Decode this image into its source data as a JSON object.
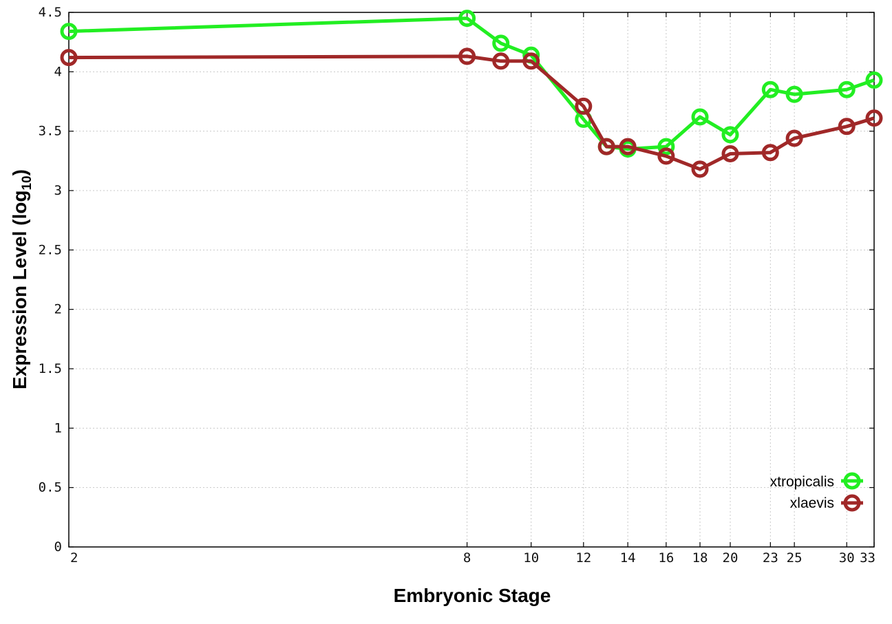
{
  "chart_data": {
    "type": "line",
    "xlabel": "Embryonic Stage",
    "ylabel_main": "Expression Level (log",
    "ylabel_sub": "10",
    "ylabel_close": ")",
    "x_ticks": [
      "2",
      "8",
      "10",
      "12",
      "14",
      "16",
      "18",
      "20",
      "23",
      "25",
      "30",
      "33"
    ],
    "y_ticks": [
      "0",
      "0.5",
      "1",
      "1.5",
      "2",
      "2.5",
      "3",
      "3.5",
      "4",
      "4.5"
    ],
    "xlim": [
      2,
      33
    ],
    "ylim": [
      0,
      4.5
    ],
    "x_scale": "log",
    "grid": true,
    "legend_position": "bottom-right",
    "series": [
      {
        "name": "xtropicalis",
        "color": "#22ee22",
        "points": [
          [
            2,
            4.34
          ],
          [
            8,
            4.45
          ],
          [
            9,
            4.24
          ],
          [
            10,
            4.14
          ],
          [
            12,
            3.6
          ],
          [
            13,
            3.37
          ],
          [
            14,
            3.35
          ],
          [
            16,
            3.37
          ],
          [
            18,
            3.62
          ],
          [
            20,
            3.47
          ],
          [
            23,
            3.85
          ],
          [
            25,
            3.81
          ],
          [
            30,
            3.85
          ],
          [
            33,
            3.93
          ]
        ]
      },
      {
        "name": "xlaevis",
        "color": "#a02828",
        "points": [
          [
            2,
            4.12
          ],
          [
            8,
            4.13
          ],
          [
            9,
            4.09
          ],
          [
            10,
            4.09
          ],
          [
            12,
            3.71
          ],
          [
            13,
            3.37
          ],
          [
            14,
            3.37
          ],
          [
            16,
            3.29
          ],
          [
            18,
            3.18
          ],
          [
            20,
            3.31
          ],
          [
            23,
            3.32
          ],
          [
            25,
            3.44
          ],
          [
            30,
            3.54
          ],
          [
            33,
            3.61
          ]
        ]
      }
    ]
  }
}
